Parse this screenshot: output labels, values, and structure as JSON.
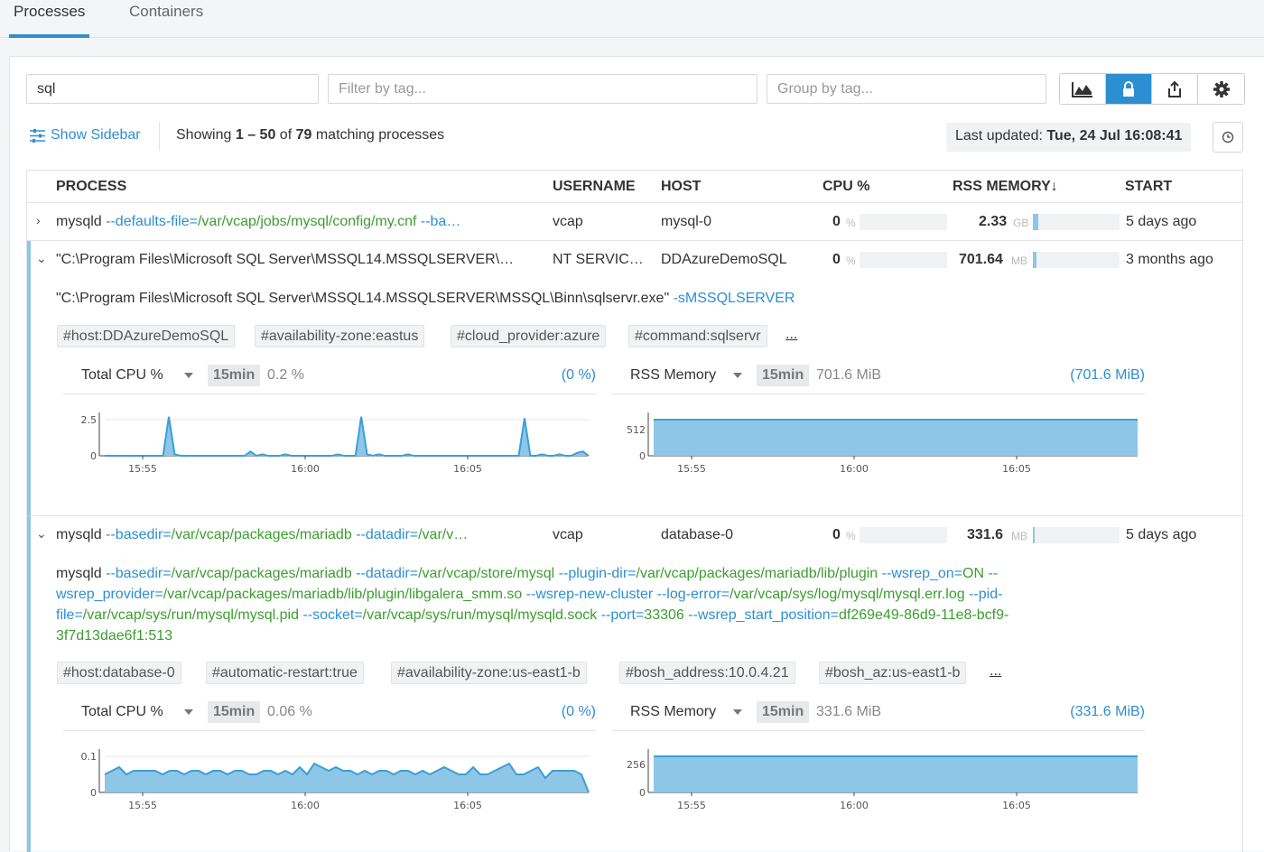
{
  "tabs": [
    {
      "label": "Processes"
    },
    {
      "label": "Containers"
    }
  ],
  "search": {
    "value": "sql"
  },
  "filter": {
    "placeholder": "Filter by tag..."
  },
  "group": {
    "placeholder": "Group by tag..."
  },
  "toolbar": {
    "icons": [
      "area-chart-icon",
      "lock-icon",
      "share-icon",
      "gear-icon"
    ]
  },
  "sidebar_toggle": {
    "label": "Show Sidebar"
  },
  "showing": {
    "prefix": "Showing",
    "from": "1",
    "dash": "–",
    "to": "50",
    "of": "of",
    "total": "79",
    "suffix": "matching processes"
  },
  "last_updated": {
    "label": "Last updated:",
    "value": "Tue, 24 Jul 16:08:41"
  },
  "columns": {
    "process": "PROCESS",
    "username": "USERNAME",
    "host": "HOST",
    "cpu": "CPU %",
    "rss": "RSS MEMORY↓",
    "start": "START"
  },
  "rows": [
    {
      "cmd_name": "mysqld",
      "cmd_flag1": "--defaults-file=",
      "cmd_path1": "/var/vcap/jobs/mysql/config/my.cnf",
      "cmd_more": "--ba…",
      "username": "vcap",
      "host": "mysql-0",
      "cpu": "0",
      "cpu_unit": "%",
      "rss": "2.33",
      "rss_unit": "GB",
      "rss_fraction": 0.06,
      "start": "5 days ago"
    },
    {
      "cmd_short": "\"C:\\Program Files\\Microsoft SQL Server\\MSSQL14.MSSQLSERVER\\…",
      "username": "NT SERVIC…",
      "host": "DDAzureDemoSQL",
      "cpu": "0",
      "cpu_unit": "%",
      "rss": "701.64",
      "rss_unit": "MB",
      "rss_fraction": 0.04,
      "start": "3 months ago",
      "full_cmd": "\"C:\\Program Files\\Microsoft SQL Server\\MSSQL14.MSSQLSERVER\\MSSQL\\Binn\\sqlservr.exe\"",
      "full_flag": "-sMSSQLSERVER",
      "tags": [
        "#host:DDAzureDemoSQL",
        "#availability-zone:eastus",
        "#cloud_provider:azure",
        "#command:sqlservr"
      ],
      "more": "...",
      "cpu_chart": {
        "title": "Total CPU %",
        "period": "15min",
        "value": "0.2 %",
        "paren": "(0 %)"
      },
      "mem_chart": {
        "title": "RSS Memory",
        "period": "15min",
        "value": "701.6 MiB",
        "paren": "(701.6 MiB)"
      }
    },
    {
      "cmd_name": "mysqld",
      "cmd_flag1": "--basedir=",
      "cmd_path1": "/var/vcap/packages/mariadb",
      "cmd_flag2": "--datadir=",
      "cmd_path2": "/var/v…",
      "username": "vcap",
      "host": "database-0",
      "cpu": "0",
      "cpu_unit": "%",
      "rss": "331.6",
      "rss_unit": "MB",
      "rss_fraction": 0.01,
      "start": "5 days ago",
      "full_cmd_line1": [
        {
          "t": "mysqld ",
          "c": "plain"
        },
        {
          "t": "--basedir=",
          "c": "blue"
        },
        {
          "t": "/var/vcap/packages/mariadb ",
          "c": "green"
        },
        {
          "t": "--datadir=",
          "c": "blue"
        },
        {
          "t": "/var/vcap/store/mysql ",
          "c": "green"
        },
        {
          "t": "--plugin-dir=",
          "c": "blue"
        },
        {
          "t": "/var/vcap/packages/mariadb/lib/plugin ",
          "c": "green"
        },
        {
          "t": "--wsrep_on=",
          "c": "blue"
        },
        {
          "t": "ON ",
          "c": "green"
        },
        {
          "t": "--",
          "c": "blue"
        }
      ],
      "full_cmd_line2": [
        {
          "t": "wsrep_provider=",
          "c": "blue"
        },
        {
          "t": "/var/vcap/packages/mariadb/lib/plugin/libgalera_smm.so ",
          "c": "green"
        },
        {
          "t": "--wsrep-new-cluster ",
          "c": "blue"
        },
        {
          "t": "--log-error=",
          "c": "blue"
        },
        {
          "t": "/var/vcap/sys/log/mysql/mysql.err.log ",
          "c": "green"
        },
        {
          "t": "--pid-",
          "c": "blue"
        }
      ],
      "full_cmd_line3": [
        {
          "t": "file=",
          "c": "blue"
        },
        {
          "t": "/var/vcap/sys/run/mysql/mysql.pid ",
          "c": "green"
        },
        {
          "t": "--socket=",
          "c": "blue"
        },
        {
          "t": "/var/vcap/sys/run/mysql/mysqld.sock ",
          "c": "green"
        },
        {
          "t": "--port=",
          "c": "blue"
        },
        {
          "t": "33306 ",
          "c": "green"
        },
        {
          "t": "--wsrep_start_position=",
          "c": "blue"
        },
        {
          "t": "df269e49-86d9-11e8-bcf9-",
          "c": "green"
        }
      ],
      "full_cmd_line4": [
        {
          "t": "3f7d13dae6f1:513",
          "c": "green"
        }
      ],
      "tags": [
        "#host:database-0",
        "#automatic-restart:true",
        "#availability-zone:us-east1-b",
        "#bosh_address:10.0.4.21",
        "#bosh_az:us-east1-b"
      ],
      "more": "...",
      "cpu_chart": {
        "title": "Total CPU %",
        "period": "15min",
        "value": "0.06 %",
        "paren": "(0 %)"
      },
      "mem_chart": {
        "title": "RSS Memory",
        "period": "15min",
        "value": "331.6 MiB",
        "paren": "(331.6 MiB)"
      }
    }
  ],
  "chart_data": [
    {
      "type": "area",
      "name": "Total CPU % (sqlservr)",
      "x_ticks": [
        "15:55",
        "16:00",
        "16:05"
      ],
      "y_ticks": [
        "0",
        "2.5"
      ],
      "ylim": [
        0,
        2.5
      ],
      "values": [
        0,
        0,
        0,
        0,
        0,
        0,
        0,
        0,
        0,
        0,
        0,
        2.7,
        0.1,
        0,
        0,
        0,
        0,
        0,
        0,
        0,
        0,
        0,
        0,
        0,
        0,
        0.3,
        0,
        0.1,
        0,
        0,
        0,
        0.1,
        0,
        0,
        0,
        0,
        0,
        0,
        0,
        0,
        0.1,
        0,
        0,
        0,
        2.7,
        0.1,
        0,
        0.1,
        0,
        0,
        0,
        0,
        0.1,
        0,
        0,
        0,
        0,
        0,
        0,
        0,
        0,
        0,
        0,
        0,
        0,
        0,
        0,
        0,
        0,
        0,
        0,
        0,
        2.6,
        0,
        0,
        0.1,
        0,
        0,
        0.1,
        0,
        0,
        0.2,
        0.3,
        0
      ]
    },
    {
      "type": "area",
      "name": "RSS Memory (sqlservr)",
      "x_ticks": [
        "15:55",
        "16:00",
        "16:05"
      ],
      "y_ticks": [
        "0",
        "512"
      ],
      "ylim": [
        0,
        702
      ],
      "values": [
        701.6,
        701.6
      ]
    },
    {
      "type": "area",
      "name": "Total CPU % (mysqld)",
      "x_ticks": [
        "15:55",
        "16:00",
        "16:05"
      ],
      "y_ticks": [
        "0",
        "0.1"
      ],
      "ylim": [
        0,
        0.1
      ],
      "values": [
        0.05,
        0.06,
        0.07,
        0.05,
        0.06,
        0.06,
        0.06,
        0.06,
        0.05,
        0.06,
        0.06,
        0.05,
        0.06,
        0.06,
        0.05,
        0.06,
        0.06,
        0.05,
        0.06,
        0.06,
        0.05,
        0.05,
        0.06,
        0.06,
        0.05,
        0.06,
        0.05,
        0.07,
        0.05,
        0.08,
        0.07,
        0.06,
        0.07,
        0.06,
        0.06,
        0.05,
        0.06,
        0.05,
        0.06,
        0.06,
        0.05,
        0.06,
        0.06,
        0.05,
        0.06,
        0.05,
        0.06,
        0.07,
        0.06,
        0.05,
        0.05,
        0.07,
        0.05,
        0.05,
        0.06,
        0.07,
        0.08,
        0.05,
        0.05,
        0.06,
        0.07,
        0.04,
        0.06,
        0.06,
        0.06,
        0.06,
        0.05,
        0
      ]
    },
    {
      "type": "area",
      "name": "RSS Memory (mysqld)",
      "x_ticks": [
        "15:55",
        "16:00",
        "16:05"
      ],
      "y_ticks": [
        "0",
        "256"
      ],
      "ylim": [
        0,
        331.6
      ],
      "values": [
        331.6,
        331.6
      ]
    }
  ],
  "colors": {
    "accent": "#2c8fd1",
    "area_fill": "#8ec6e8",
    "area_line": "#3a9fd8",
    "green": "#3c9d2f"
  }
}
